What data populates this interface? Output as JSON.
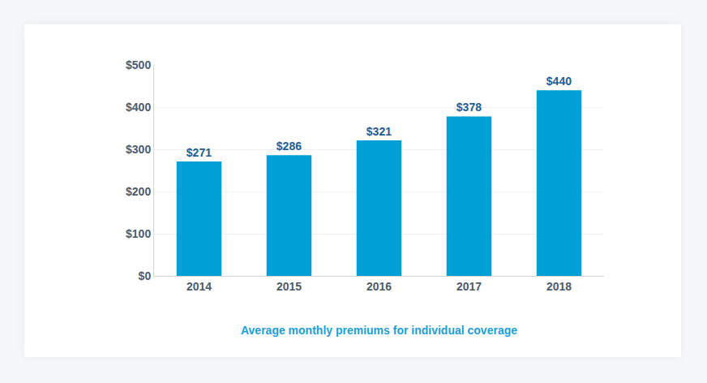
{
  "chart_data": {
    "type": "bar",
    "title": "Average monthly premiums for individual coverage",
    "categories": [
      "2014",
      "2015",
      "2016",
      "2017",
      "2018"
    ],
    "values": [
      271,
      286,
      321,
      378,
      440
    ],
    "value_labels": [
      "$271",
      "$286",
      "$321",
      "$378",
      "$440"
    ],
    "color": "#00a0d6",
    "ylim": [
      0,
      500
    ],
    "yticks": [
      {
        "value": 0,
        "label": "$0"
      },
      {
        "value": 100,
        "label": "$100"
      },
      {
        "value": 200,
        "label": "$200"
      },
      {
        "value": 300,
        "label": "$300"
      },
      {
        "value": 400,
        "label": "$400"
      },
      {
        "value": 500,
        "label": "$500"
      }
    ],
    "grid": true,
    "data_labels": true
  }
}
